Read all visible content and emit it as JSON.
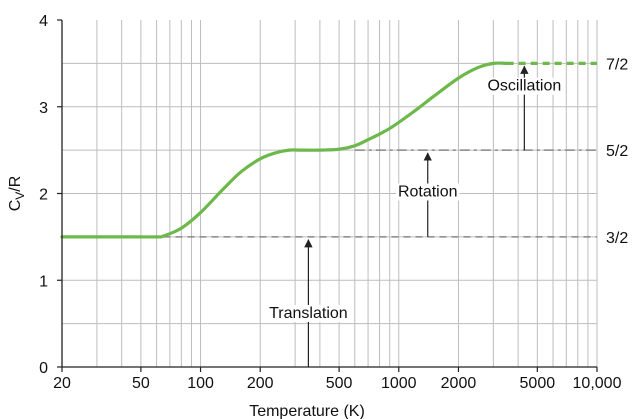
{
  "chart_data": {
    "type": "line",
    "title": "",
    "xlabel": "Temperature (K)",
    "ylabel": "C_V/R",
    "x_scale": "log",
    "xlim": [
      20,
      10000
    ],
    "ylim": [
      0,
      4
    ],
    "grid": true,
    "x_ticks": [
      {
        "value": 20,
        "label": "20"
      },
      {
        "value": 50,
        "label": "50"
      },
      {
        "value": 100,
        "label": "100"
      },
      {
        "value": 200,
        "label": "200"
      },
      {
        "value": 500,
        "label": "500"
      },
      {
        "value": 1000,
        "label": "1000"
      },
      {
        "value": 2000,
        "label": "2000"
      },
      {
        "value": 5000,
        "label": "5000"
      },
      {
        "value": 10000,
        "label": "10,000"
      }
    ],
    "y_ticks": [
      {
        "value": 0,
        "label": "0"
      },
      {
        "value": 1,
        "label": "1"
      },
      {
        "value": 2,
        "label": "2"
      },
      {
        "value": 3,
        "label": "3"
      },
      {
        "value": 4,
        "label": "4"
      }
    ],
    "right_labels": [
      {
        "value": 1.5,
        "label": "3/2"
      },
      {
        "value": 2.5,
        "label": "5/2"
      },
      {
        "value": 3.5,
        "label": "7/2"
      }
    ],
    "series": [
      {
        "color": "#6cb84a",
        "x": [
          20,
          40,
          60,
          65,
          80,
          100,
          130,
          160,
          200,
          240,
          280,
          320,
          400,
          500,
          600,
          700,
          900,
          1200,
          1500,
          2000,
          2500,
          3000,
          3500
        ],
        "y": [
          1.5,
          1.5,
          1.5,
          1.51,
          1.6,
          1.78,
          2.05,
          2.25,
          2.4,
          2.47,
          2.5,
          2.5,
          2.5,
          2.51,
          2.55,
          2.62,
          2.75,
          2.95,
          3.12,
          3.33,
          3.45,
          3.5,
          3.5
        ]
      }
    ],
    "extension": {
      "x": [
        3500,
        10000
      ],
      "y": 3.5,
      "color": "#6cb84a",
      "style": "dashed"
    },
    "reference_lines": [
      {
        "y": 1.5,
        "x_from": 65,
        "x_to": 10000,
        "color": "#888888",
        "style": "dashed"
      },
      {
        "y": 2.5,
        "x_from": 600,
        "x_to": 10000,
        "color": "#888888",
        "style": "dashdot"
      }
    ],
    "annotations": [
      {
        "text": "Translation",
        "arrow_x": 350,
        "y_from": 0,
        "y_to": 1.5,
        "text_y": 0.6
      },
      {
        "text": "Rotation",
        "arrow_x": 1400,
        "y_from": 1.5,
        "y_to": 2.5,
        "text_y": 2.0
      },
      {
        "text": "Oscillation",
        "arrow_x": 4300,
        "y_from": 2.5,
        "y_to": 3.5,
        "text_y": 3.22
      }
    ]
  }
}
